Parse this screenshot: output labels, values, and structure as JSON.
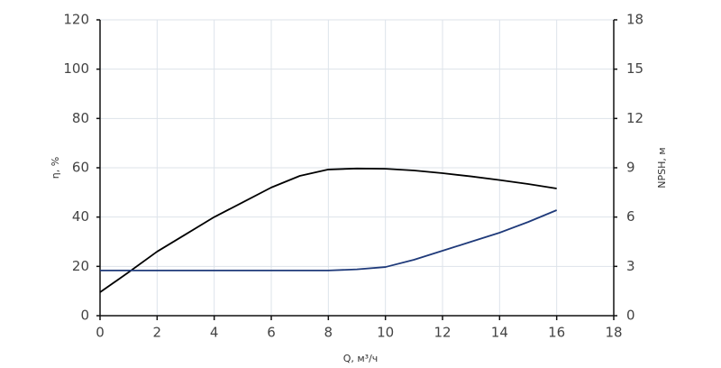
{
  "chart_data": {
    "type": "line",
    "x_label": "Q, м³/ч",
    "y_label": "η, %",
    "y2_label": "NPSH, м",
    "x": [
      0,
      1,
      2,
      3,
      4,
      5,
      6,
      7,
      8,
      9,
      10,
      11,
      12,
      13,
      14,
      15,
      16
    ],
    "series": [
      {
        "color": "#000000",
        "values": [
          9.5,
          17.6,
          26,
          33,
          40,
          46,
          52,
          56.7,
          59.3,
          59.7,
          59.6,
          58.9,
          57.8,
          56.5,
          55,
          53.4,
          51.6
        ]
      },
      {
        "color": "#1f3a7a",
        "axis": "y2",
        "values": [
          2.75,
          2.75,
          2.75,
          2.75,
          2.75,
          2.75,
          2.75,
          2.75,
          2.75,
          2.82,
          2.96,
          3.4,
          3.95,
          4.5,
          5.05,
          5.7,
          6.42
        ]
      }
    ],
    "xlim": [
      0,
      18
    ],
    "xticks": [
      0,
      2,
      4,
      6,
      8,
      10,
      12,
      14,
      16,
      18
    ],
    "ylim": [
      0,
      120
    ],
    "yticks": [
      0,
      20,
      40,
      60,
      80,
      100,
      120
    ],
    "y2lim": [
      0,
      18
    ],
    "y2ticks": [
      0,
      3,
      6,
      9,
      12,
      15,
      18
    ],
    "grid": true
  }
}
